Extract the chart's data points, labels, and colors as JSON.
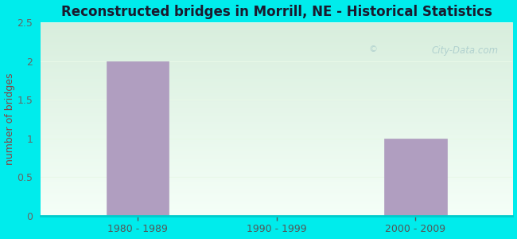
{
  "title": "Reconstructed bridges in Morrill, NE - Historical Statistics",
  "categories": [
    "1980 - 1989",
    "1990 - 1999",
    "2000 - 2009"
  ],
  "values": [
    2,
    0,
    1
  ],
  "bar_color": "#b09ec0",
  "bar_edge_color": "#b09ec0",
  "ylabel": "number of bridges",
  "ylim": [
    0,
    2.5
  ],
  "yticks": [
    0,
    0.5,
    1,
    1.5,
    2,
    2.5
  ],
  "outer_bg": "#00ecec",
  "plot_bg_top": "#d8eedd",
  "plot_bg_bottom": "#f5fff8",
  "grid_color": "#e8f8e8",
  "tick_color": "#666666",
  "ylabel_color": "#884444",
  "xlabel_color": "#555555",
  "title_color": "#1a1a2e",
  "watermark_text": "City-Data.com",
  "watermark_color": "#aacccc",
  "bottom_spine_color": "#00cccc"
}
